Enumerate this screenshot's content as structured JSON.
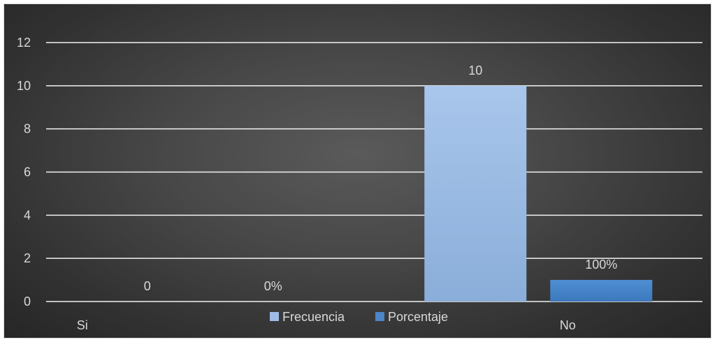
{
  "chart_data": {
    "type": "bar",
    "categories": [
      "Si",
      "No"
    ],
    "series": [
      {
        "name": "Frecuencia",
        "values": [
          0,
          10
        ],
        "labels": [
          "0",
          "10"
        ],
        "color": "#9dbde6"
      },
      {
        "name": "Porcentaje",
        "values": [
          0,
          1
        ],
        "labels": [
          "0%",
          "100%"
        ],
        "color": "#4a86c8"
      }
    ],
    "ylim": [
      0,
      12
    ],
    "yticks": [
      0,
      2,
      4,
      6,
      8,
      10,
      12
    ],
    "grid": true,
    "legend": "bottom",
    "background": "#3a3a3a",
    "gridline_color": "#f2f2f2",
    "text_color": "#d9d9d9"
  }
}
